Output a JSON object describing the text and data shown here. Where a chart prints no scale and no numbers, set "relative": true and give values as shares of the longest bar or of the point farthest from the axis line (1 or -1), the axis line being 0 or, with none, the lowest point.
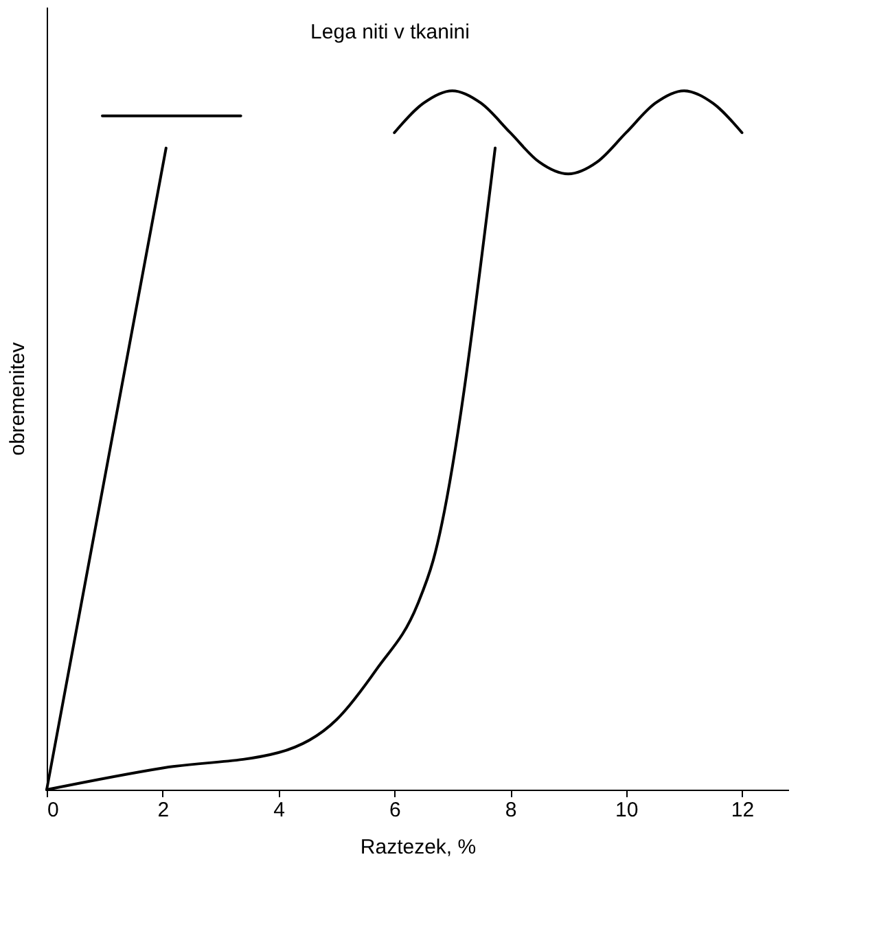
{
  "chart_data": {
    "type": "line",
    "relative": true,
    "xlabel": "Raztezek, %",
    "ylabel": "obremenitev",
    "xlim": [
      0,
      12.8
    ],
    "xticks": [
      0,
      2,
      4,
      6,
      8,
      10,
      12
    ],
    "tick_labels": "x",
    "grid": false,
    "marker": "none",
    "line_style": "solid",
    "annotations": [
      "Lega niti v tkanini"
    ],
    "series": [
      {
        "color": "#000000",
        "x": [
          0,
          2.06
        ],
        "values": [
          0,
          0.918
        ]
      },
      {
        "color": "#000000",
        "x": [
          0,
          2,
          4,
          5,
          5.7,
          6.4,
          6.67,
          7.74
        ],
        "values": [
          0,
          0.031,
          0.053,
          0.1,
          0.173,
          0.265,
          0.328,
          0.918
        ]
      },
      {
        "color": "#000000",
        "x": [
          0.96,
          3.35
        ],
        "values": [
          0.964,
          0.964
        ]
      },
      {
        "color": "#000000",
        "x": [
          6,
          6.5,
          7,
          7.5,
          8,
          8.5,
          9,
          9.5,
          10,
          10.5,
          11,
          11.5,
          12
        ],
        "values": [
          0.94,
          0.982,
          1.0,
          0.982,
          0.94,
          0.898,
          0.881,
          0.898,
          0.94,
          0.982,
          1.0,
          0.982,
          0.94
        ]
      }
    ]
  }
}
